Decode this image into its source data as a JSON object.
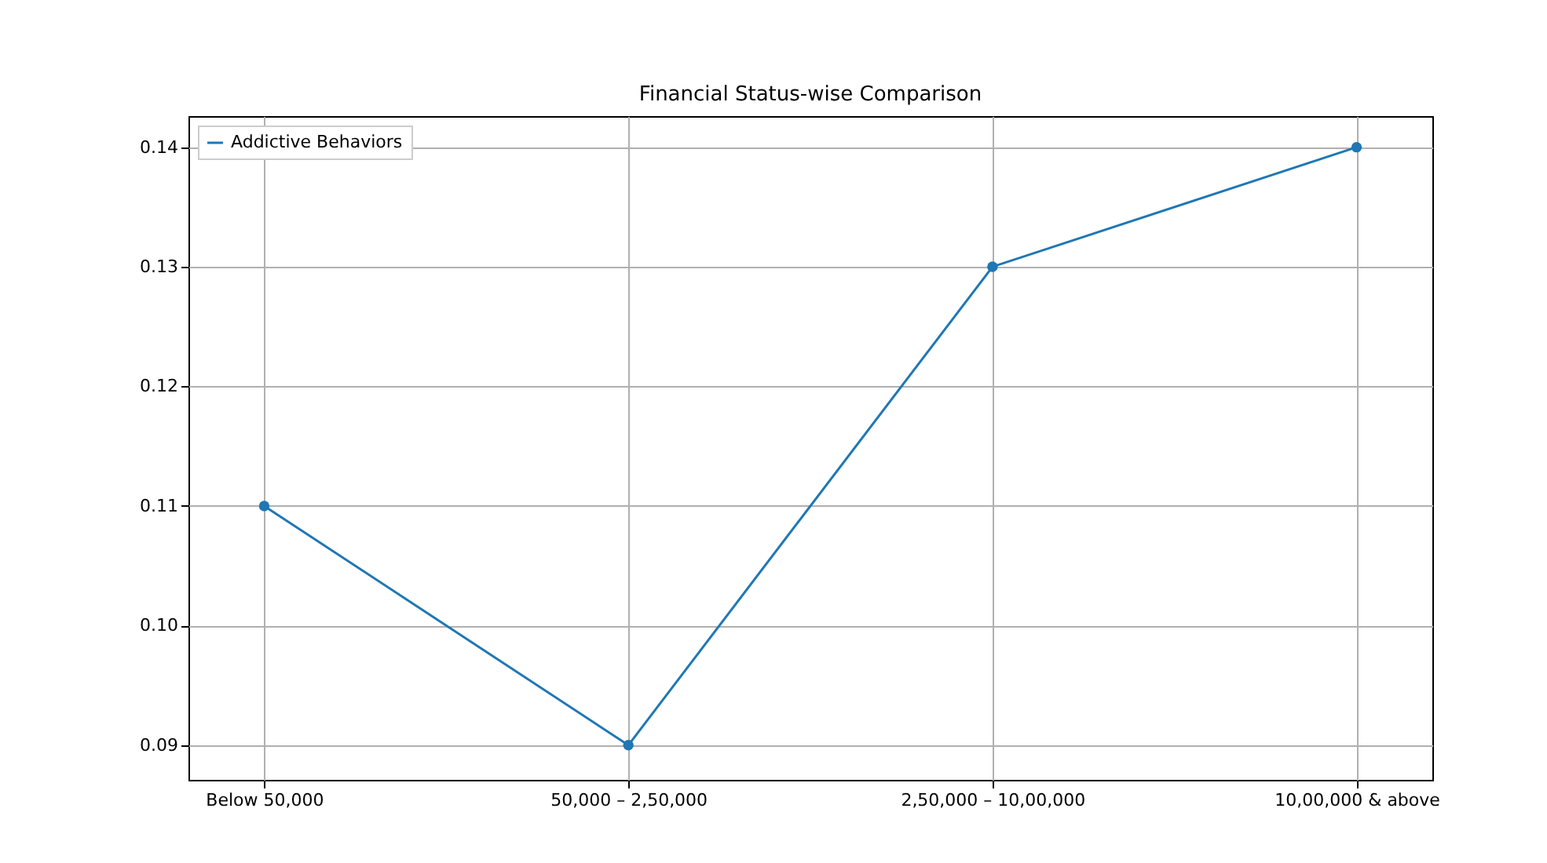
{
  "chart_data": {
    "type": "line",
    "title": "Financial Status-wise Comparison",
    "categories": [
      "Below 50,000",
      "50,000 – 2,50,000",
      "2,50,000 – 10,00,000",
      "10,00,000 & above"
    ],
    "series": [
      {
        "name": "Addictive Behaviors",
        "color": "#1f77b4",
        "values": [
          0.11,
          0.09,
          0.13,
          0.14
        ]
      }
    ],
    "ylim": [
      0.0871,
      0.1426
    ],
    "yticks": [
      0.09,
      {
        "value": 0.1,
        "label": "0.10"
      },
      0.11,
      0.12,
      0.13,
      0.14
    ],
    "grid": true,
    "legend": "top left",
    "marker": "circle",
    "line_style": "solid"
  }
}
